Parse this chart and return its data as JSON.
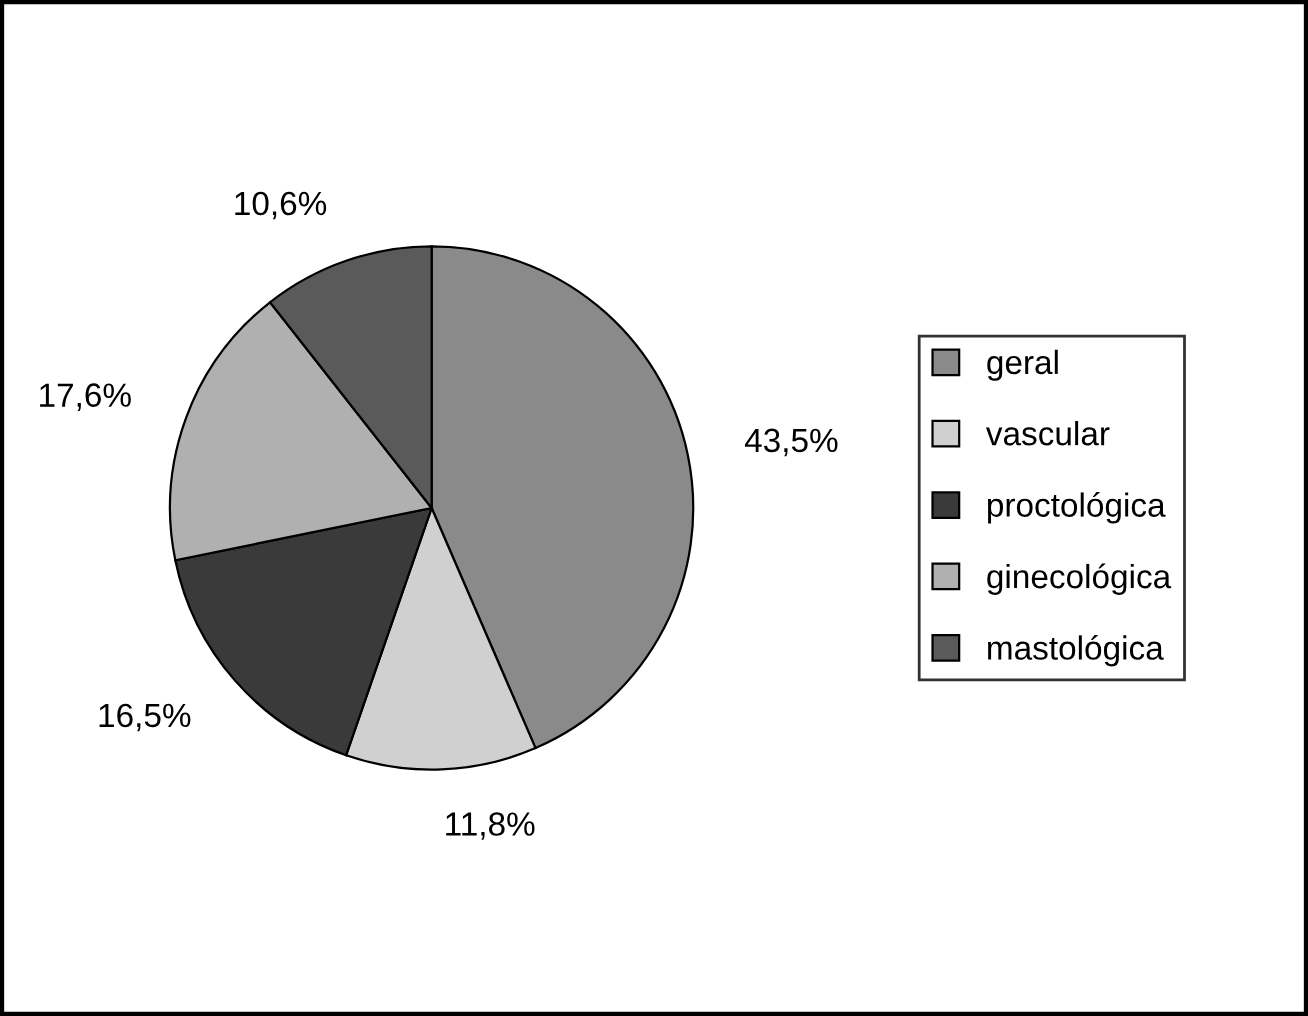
{
  "chart_data": {
    "type": "pie",
    "categories": [
      "geral",
      "vascular",
      "proctológica",
      "ginecológica",
      "mastológica"
    ],
    "values": [
      43.5,
      11.8,
      16.5,
      17.6,
      10.6
    ],
    "value_labels": [
      "43,5%",
      "11,8%",
      "16,5%",
      "17,6%",
      "10,6%"
    ],
    "colors": [
      "#8a8a8a",
      "#d0d0d0",
      "#3a3a3a",
      "#b0b0b0",
      "#5a5a5a"
    ],
    "legend": "right"
  }
}
